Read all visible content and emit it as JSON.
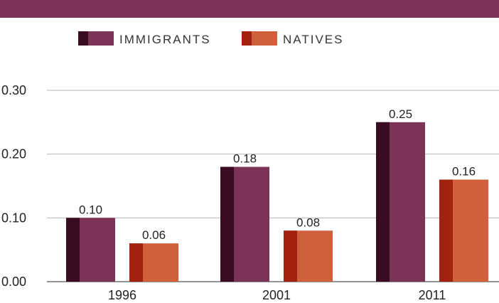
{
  "header": {
    "title": "",
    "band_color": "#7b3358"
  },
  "chart_data": {
    "type": "bar",
    "categories": [
      "1996",
      "2001",
      "2011"
    ],
    "series": [
      {
        "name": "IMMIGRANTS",
        "values": [
          0.1,
          0.18,
          0.25
        ],
        "value_labels": [
          "0.10",
          "0.18",
          "0.25"
        ],
        "color": "#7b3358",
        "shade": "#3a0c21"
      },
      {
        "name": "NATIVES",
        "values": [
          0.06,
          0.08,
          0.16
        ],
        "value_labels": [
          "0.06",
          "0.08",
          "0.16"
        ],
        "color": "#d0603a",
        "shade": "#a3220f"
      }
    ],
    "y_ticks": [
      "0.00",
      "0.10",
      "0.20",
      "0.30"
    ],
    "y_tick_values": [
      0,
      0.1,
      0.2,
      0.3
    ],
    "ylim": [
      0,
      0.31
    ],
    "grid": true,
    "legend": "top-center",
    "xlabel": "",
    "ylabel": ""
  }
}
